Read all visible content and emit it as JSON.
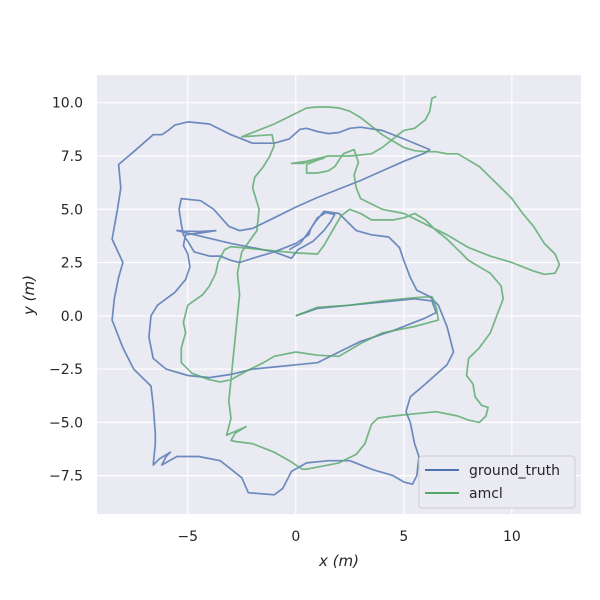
{
  "chart_data": {
    "type": "line",
    "title": "",
    "xlabel": "x (m)",
    "ylabel": "y (m)",
    "xlim": [
      -9.2,
      13.2
    ],
    "ylim": [
      -9.3,
      11.3
    ],
    "xticks": [
      -5,
      0,
      5,
      10
    ],
    "xtick_labels": [
      "−5",
      "0",
      "5",
      "10"
    ],
    "yticks": [
      -7.5,
      -5.0,
      -2.5,
      0.0,
      2.5,
      5.0,
      7.5,
      10.0
    ],
    "ytick_labels": [
      "−7.5",
      "−5.0",
      "−2.5",
      "0.0",
      "2.5",
      "5.0",
      "7.5",
      "10.0"
    ],
    "grid": true,
    "background": "#EAEAF2",
    "legend_position": "lower-right",
    "series": [
      {
        "name": "ground_truth",
        "color": "#4C72B0",
        "points": [
          [
            0.0,
            0.0
          ],
          [
            1.0,
            0.35
          ],
          [
            2.5,
            0.5
          ],
          [
            4.0,
            0.65
          ],
          [
            5.5,
            0.8
          ],
          [
            6.3,
            0.7
          ],
          [
            6.5,
            0.15
          ],
          [
            6.0,
            -0.1
          ],
          [
            4.5,
            -0.7
          ],
          [
            3.0,
            -1.2
          ],
          [
            2.0,
            -1.7
          ],
          [
            1.0,
            -2.2
          ],
          [
            0.0,
            -2.3
          ],
          [
            -1.0,
            -2.4
          ],
          [
            -2.0,
            -2.5
          ],
          [
            -3.0,
            -2.75
          ],
          [
            -4.0,
            -2.9
          ],
          [
            -5.0,
            -2.8
          ],
          [
            -6.0,
            -2.5
          ],
          [
            -6.6,
            -2.0
          ],
          [
            -6.8,
            -1.0
          ],
          [
            -6.7,
            0.0
          ],
          [
            -6.4,
            0.5
          ],
          [
            -5.6,
            1.1
          ],
          [
            -5.1,
            1.7
          ],
          [
            -4.9,
            2.3
          ],
          [
            -5.0,
            2.9
          ],
          [
            -5.2,
            3.3
          ],
          [
            -5.1,
            3.8
          ],
          [
            -4.3,
            3.9
          ],
          [
            -3.7,
            4.0
          ],
          [
            -4.5,
            3.95
          ],
          [
            -5.5,
            4.0
          ],
          [
            -3.0,
            3.4
          ],
          [
            -1.0,
            3.0
          ],
          [
            -0.2,
            2.7
          ],
          [
            0.1,
            3.1
          ],
          [
            0.8,
            3.5
          ],
          [
            1.3,
            4.0
          ],
          [
            1.6,
            4.4
          ],
          [
            1.8,
            4.75
          ],
          [
            1.4,
            4.85
          ],
          [
            1.0,
            4.6
          ],
          [
            0.7,
            4.1
          ],
          [
            0.6,
            3.8
          ],
          [
            0.0,
            3.4
          ],
          [
            -1.0,
            3.0
          ],
          [
            -2.0,
            2.7
          ],
          [
            -2.6,
            2.5
          ],
          [
            -3.0,
            2.6
          ],
          [
            -3.5,
            2.8
          ],
          [
            -4.0,
            2.8
          ],
          [
            -4.7,
            3.0
          ],
          [
            -5.0,
            3.5
          ],
          [
            -5.2,
            3.8
          ],
          [
            -5.3,
            4.3
          ],
          [
            -5.4,
            5.0
          ],
          [
            -5.3,
            5.5
          ],
          [
            -4.4,
            5.4
          ],
          [
            -3.8,
            5.0
          ],
          [
            -3.1,
            4.2
          ],
          [
            -2.6,
            4.0
          ],
          [
            -2.0,
            4.1
          ],
          [
            -1.0,
            4.6
          ],
          [
            0.0,
            5.1
          ],
          [
            1.0,
            5.55
          ],
          [
            2.0,
            5.95
          ],
          [
            3.0,
            6.35
          ],
          [
            4.0,
            6.8
          ],
          [
            5.0,
            7.25
          ],
          [
            6.0,
            7.65
          ],
          [
            6.2,
            7.8
          ],
          [
            5.0,
            8.3
          ],
          [
            4.0,
            8.7
          ],
          [
            3.0,
            8.85
          ],
          [
            2.5,
            8.8
          ],
          [
            2.0,
            8.6
          ],
          [
            1.5,
            8.55
          ],
          [
            1.0,
            8.65
          ],
          [
            0.5,
            8.8
          ],
          [
            0.2,
            8.75
          ],
          [
            -0.3,
            8.3
          ],
          [
            -1.0,
            8.1
          ],
          [
            -2.0,
            8.1
          ],
          [
            -3.0,
            8.5
          ],
          [
            -4.0,
            9.0
          ],
          [
            -5.0,
            9.1
          ],
          [
            -5.6,
            8.95
          ],
          [
            -5.9,
            8.7
          ],
          [
            -6.2,
            8.5
          ],
          [
            -6.6,
            8.5
          ],
          [
            -7.5,
            7.7
          ],
          [
            -8.2,
            7.1
          ],
          [
            -8.1,
            6.0
          ],
          [
            -8.25,
            5.0
          ],
          [
            -8.5,
            3.6
          ],
          [
            -8.0,
            2.5
          ],
          [
            -8.2,
            1.8
          ],
          [
            -8.4,
            0.8
          ],
          [
            -8.5,
            -0.2
          ],
          [
            -8.0,
            -1.5
          ],
          [
            -7.5,
            -2.5
          ],
          [
            -6.7,
            -3.3
          ],
          [
            -6.6,
            -4.2
          ],
          [
            -6.5,
            -5.5
          ],
          [
            -6.5,
            -6.0
          ],
          [
            -6.6,
            -7.0
          ],
          [
            -6.3,
            -6.7
          ],
          [
            -5.8,
            -6.4
          ],
          [
            -6.0,
            -6.6
          ],
          [
            -6.2,
            -7.0
          ],
          [
            -5.5,
            -6.6
          ],
          [
            -4.5,
            -6.6
          ],
          [
            -3.5,
            -6.8
          ],
          [
            -3.0,
            -7.2
          ],
          [
            -2.5,
            -7.6
          ],
          [
            -2.2,
            -8.3
          ],
          [
            -1.0,
            -8.4
          ],
          [
            -0.6,
            -8.1
          ],
          [
            -0.2,
            -7.3
          ],
          [
            0.5,
            -6.9
          ],
          [
            1.5,
            -6.8
          ],
          [
            2.5,
            -6.8
          ],
          [
            3.5,
            -7.2
          ],
          [
            4.5,
            -7.5
          ],
          [
            5.0,
            -7.8
          ],
          [
            5.4,
            -7.9
          ],
          [
            5.6,
            -7.5
          ],
          [
            5.7,
            -6.6
          ],
          [
            5.5,
            -6.0
          ],
          [
            5.3,
            -5.0
          ],
          [
            5.1,
            -4.5
          ],
          [
            5.3,
            -3.8
          ],
          [
            6.0,
            -3.2
          ],
          [
            7.0,
            -2.3
          ],
          [
            7.3,
            -1.7
          ],
          [
            7.0,
            -0.5
          ],
          [
            6.6,
            0.5
          ],
          [
            6.2,
            0.9
          ],
          [
            5.6,
            1.2
          ],
          [
            5.3,
            1.8
          ],
          [
            5.0,
            2.6
          ],
          [
            4.8,
            3.2
          ],
          [
            4.3,
            3.7
          ],
          [
            3.5,
            3.8
          ],
          [
            2.8,
            4.0
          ],
          [
            2.0,
            4.8
          ],
          [
            1.3,
            4.9
          ],
          [
            0.9,
            4.4
          ],
          [
            0.5,
            3.8
          ],
          [
            0.2,
            3.4
          ],
          [
            -0.3,
            3.1
          ]
        ]
      },
      {
        "name": "amcl",
        "color": "#55A868",
        "points": [
          [
            0.0,
            0.0
          ],
          [
            1.0,
            0.4
          ],
          [
            2.5,
            0.5
          ],
          [
            4.0,
            0.7
          ],
          [
            5.5,
            0.85
          ],
          [
            6.3,
            0.9
          ],
          [
            6.5,
            0.4
          ],
          [
            6.6,
            -0.2
          ],
          [
            5.5,
            -0.5
          ],
          [
            4.0,
            -0.8
          ],
          [
            3.0,
            -1.3
          ],
          [
            2.0,
            -1.9
          ],
          [
            1.0,
            -1.85
          ],
          [
            0.0,
            -1.7
          ],
          [
            -1.0,
            -1.9
          ],
          [
            -1.5,
            -2.2
          ],
          [
            -2.3,
            -2.6
          ],
          [
            -3.0,
            -3.0
          ],
          [
            -3.5,
            -3.1
          ],
          [
            -4.0,
            -3.0
          ],
          [
            -4.8,
            -2.7
          ],
          [
            -5.3,
            -2.2
          ],
          [
            -5.3,
            -1.5
          ],
          [
            -5.1,
            -0.8
          ],
          [
            -5.2,
            -0.3
          ],
          [
            -5.0,
            0.5
          ],
          [
            -4.3,
            1.0
          ],
          [
            -4.0,
            1.4
          ],
          [
            -3.7,
            2.0
          ],
          [
            -3.6,
            2.5
          ],
          [
            -3.3,
            3.1
          ],
          [
            -3.0,
            3.25
          ],
          [
            -2.0,
            3.15
          ],
          [
            -1.0,
            3.05
          ],
          [
            0.0,
            2.95
          ],
          [
            1.0,
            2.9
          ],
          [
            1.3,
            3.3
          ],
          [
            1.7,
            4.0
          ],
          [
            2.1,
            4.7
          ],
          [
            2.5,
            5.0
          ],
          [
            3.0,
            4.8
          ],
          [
            3.5,
            4.5
          ],
          [
            4.5,
            4.5
          ],
          [
            5.0,
            4.6
          ],
          [
            5.5,
            4.8
          ],
          [
            6.0,
            4.5
          ],
          [
            6.5,
            4.0
          ],
          [
            7.0,
            3.6
          ],
          [
            7.5,
            3.1
          ],
          [
            8.0,
            2.6
          ],
          [
            8.5,
            2.3
          ],
          [
            9.0,
            2.0
          ],
          [
            9.5,
            1.4
          ],
          [
            9.6,
            0.8
          ],
          [
            9.3,
            0.0
          ],
          [
            9.0,
            -0.8
          ],
          [
            8.5,
            -1.5
          ],
          [
            8.0,
            -2.0
          ],
          [
            7.9,
            -2.8
          ],
          [
            8.2,
            -3.2
          ],
          [
            8.3,
            -3.8
          ],
          [
            8.6,
            -4.2
          ],
          [
            8.9,
            -4.3
          ],
          [
            8.8,
            -4.7
          ],
          [
            8.5,
            -5.0
          ],
          [
            8.0,
            -4.9
          ],
          [
            7.5,
            -4.7
          ],
          [
            6.5,
            -4.5
          ],
          [
            5.5,
            -4.6
          ],
          [
            4.5,
            -4.7
          ],
          [
            3.8,
            -4.8
          ],
          [
            3.5,
            -5.1
          ],
          [
            3.2,
            -6.0
          ],
          [
            2.8,
            -6.5
          ],
          [
            2.0,
            -6.9
          ],
          [
            1.0,
            -7.1
          ],
          [
            0.5,
            -7.2
          ],
          [
            0.3,
            -7.2
          ],
          [
            -0.3,
            -6.8
          ],
          [
            -1.0,
            -6.4
          ],
          [
            -2.0,
            -6.0
          ],
          [
            -2.8,
            -5.9
          ],
          [
            -3.0,
            -5.85
          ],
          [
            -2.8,
            -5.5
          ],
          [
            -2.3,
            -5.2
          ],
          [
            -3.2,
            -5.6
          ],
          [
            -3.0,
            -4.8
          ],
          [
            -3.1,
            -4.0
          ],
          [
            -3.0,
            -3.0
          ],
          [
            -2.9,
            -2.0
          ],
          [
            -2.8,
            -1.0
          ],
          [
            -2.7,
            0.0
          ],
          [
            -2.6,
            1.0
          ],
          [
            -2.7,
            2.0
          ],
          [
            -2.5,
            3.0
          ],
          [
            -1.8,
            4.0
          ],
          [
            -1.7,
            5.0
          ],
          [
            -2.0,
            6.0
          ],
          [
            -1.9,
            6.5
          ],
          [
            -1.5,
            7.0
          ],
          [
            -1.2,
            7.5
          ],
          [
            -1.0,
            8.0
          ],
          [
            -1.1,
            8.5
          ],
          [
            -2.5,
            8.4
          ],
          [
            -1.0,
            9.0
          ],
          [
            0.0,
            9.5
          ],
          [
            0.5,
            9.75
          ],
          [
            1.0,
            9.8
          ],
          [
            1.5,
            9.8
          ],
          [
            2.0,
            9.75
          ],
          [
            2.5,
            9.6
          ],
          [
            3.0,
            9.3
          ],
          [
            3.5,
            8.9
          ],
          [
            4.0,
            8.5
          ],
          [
            4.5,
            8.2
          ],
          [
            5.0,
            7.9
          ],
          [
            5.5,
            7.75
          ],
          [
            6.0,
            7.7
          ],
          [
            6.5,
            7.7
          ],
          [
            7.0,
            7.6
          ],
          [
            7.5,
            7.6
          ],
          [
            8.0,
            7.3
          ],
          [
            8.5,
            7.0
          ],
          [
            9.0,
            6.5
          ],
          [
            9.5,
            6.0
          ],
          [
            10.0,
            5.5
          ],
          [
            10.5,
            4.8
          ],
          [
            11.0,
            4.2
          ],
          [
            11.5,
            3.4
          ],
          [
            12.0,
            2.9
          ],
          [
            12.2,
            2.4
          ],
          [
            12.0,
            2.0
          ],
          [
            11.5,
            1.95
          ],
          [
            11.0,
            2.1
          ],
          [
            10.0,
            2.5
          ],
          [
            9.0,
            2.8
          ],
          [
            8.0,
            3.2
          ],
          [
            7.0,
            3.8
          ],
          [
            6.0,
            4.3
          ],
          [
            5.0,
            4.8
          ],
          [
            4.0,
            5.0
          ],
          [
            3.0,
            5.5
          ],
          [
            2.8,
            6.0
          ],
          [
            2.7,
            6.6
          ],
          [
            2.9,
            7.2
          ],
          [
            2.7,
            7.8
          ],
          [
            2.2,
            7.6
          ],
          [
            1.8,
            7.0
          ],
          [
            1.5,
            6.8
          ],
          [
            1.0,
            6.7
          ],
          [
            0.5,
            6.7
          ],
          [
            0.5,
            7.1
          ],
          [
            1.0,
            7.3
          ],
          [
            1.3,
            7.4
          ],
          [
            0.8,
            7.3
          ],
          [
            0.3,
            7.15
          ],
          [
            -0.2,
            7.15
          ],
          [
            0.5,
            7.25
          ],
          [
            1.5,
            7.5
          ],
          [
            2.5,
            7.5
          ],
          [
            3.5,
            7.6
          ],
          [
            4.0,
            7.9
          ],
          [
            4.5,
            8.3
          ],
          [
            5.0,
            8.7
          ],
          [
            5.5,
            8.8
          ],
          [
            6.0,
            9.2
          ],
          [
            6.2,
            9.6
          ],
          [
            6.3,
            10.2
          ],
          [
            6.5,
            10.3
          ]
        ]
      }
    ]
  }
}
